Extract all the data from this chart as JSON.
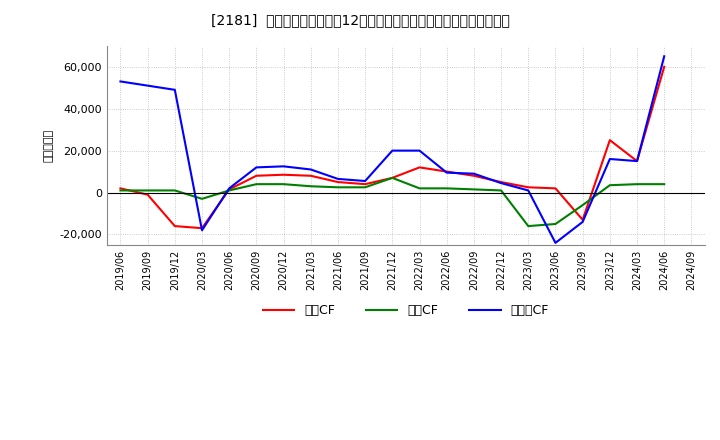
{
  "title": "[2181]  キャッシュフローの12か月移動合計の対前年同期増減額の推移",
  "ylabel": "（百万円）",
  "bg_color": "#ffffff",
  "plot_bg_color": "#ffffff",
  "grid_color": "#aaaaaa",
  "dates": [
    "2019/06",
    "2019/09",
    "2019/12",
    "2020/03",
    "2020/06",
    "2020/09",
    "2020/12",
    "2021/03",
    "2021/06",
    "2021/09",
    "2021/12",
    "2022/03",
    "2022/06",
    "2022/09",
    "2022/12",
    "2023/03",
    "2023/06",
    "2023/09",
    "2023/12",
    "2024/03",
    "2024/06",
    "2024/09"
  ],
  "eigyo_cf": [
    2000,
    -1000,
    -16000,
    -17000,
    1500,
    8000,
    8500,
    8000,
    5000,
    4000,
    7000,
    12000,
    10000,
    8000,
    5000,
    2500,
    2000,
    -13000,
    25000,
    15000,
    60000,
    null
  ],
  "toshi_cf": [
    1000,
    1000,
    1000,
    -3000,
    1000,
    4000,
    4000,
    3000,
    2500,
    2500,
    7000,
    2000,
    2000,
    1500,
    1000,
    -16000,
    -15000,
    -6000,
    3500,
    4000,
    4000,
    null
  ],
  "free_cf": [
    53000,
    51000,
    49000,
    -18000,
    2000,
    12000,
    12500,
    11000,
    6500,
    5500,
    20000,
    20000,
    9500,
    9000,
    4500,
    1000,
    -24000,
    -14000,
    16000,
    15000,
    65000,
    null
  ],
  "eigyo_color": "#ff0000",
  "toshi_color": "#008000",
  "free_color": "#0000ff",
  "ylim": [
    -25000,
    70000
  ],
  "yticks": [
    -20000,
    0,
    20000,
    40000,
    60000
  ],
  "legend_labels": [
    "営業CF",
    "投資CF",
    "フリーCF"
  ]
}
